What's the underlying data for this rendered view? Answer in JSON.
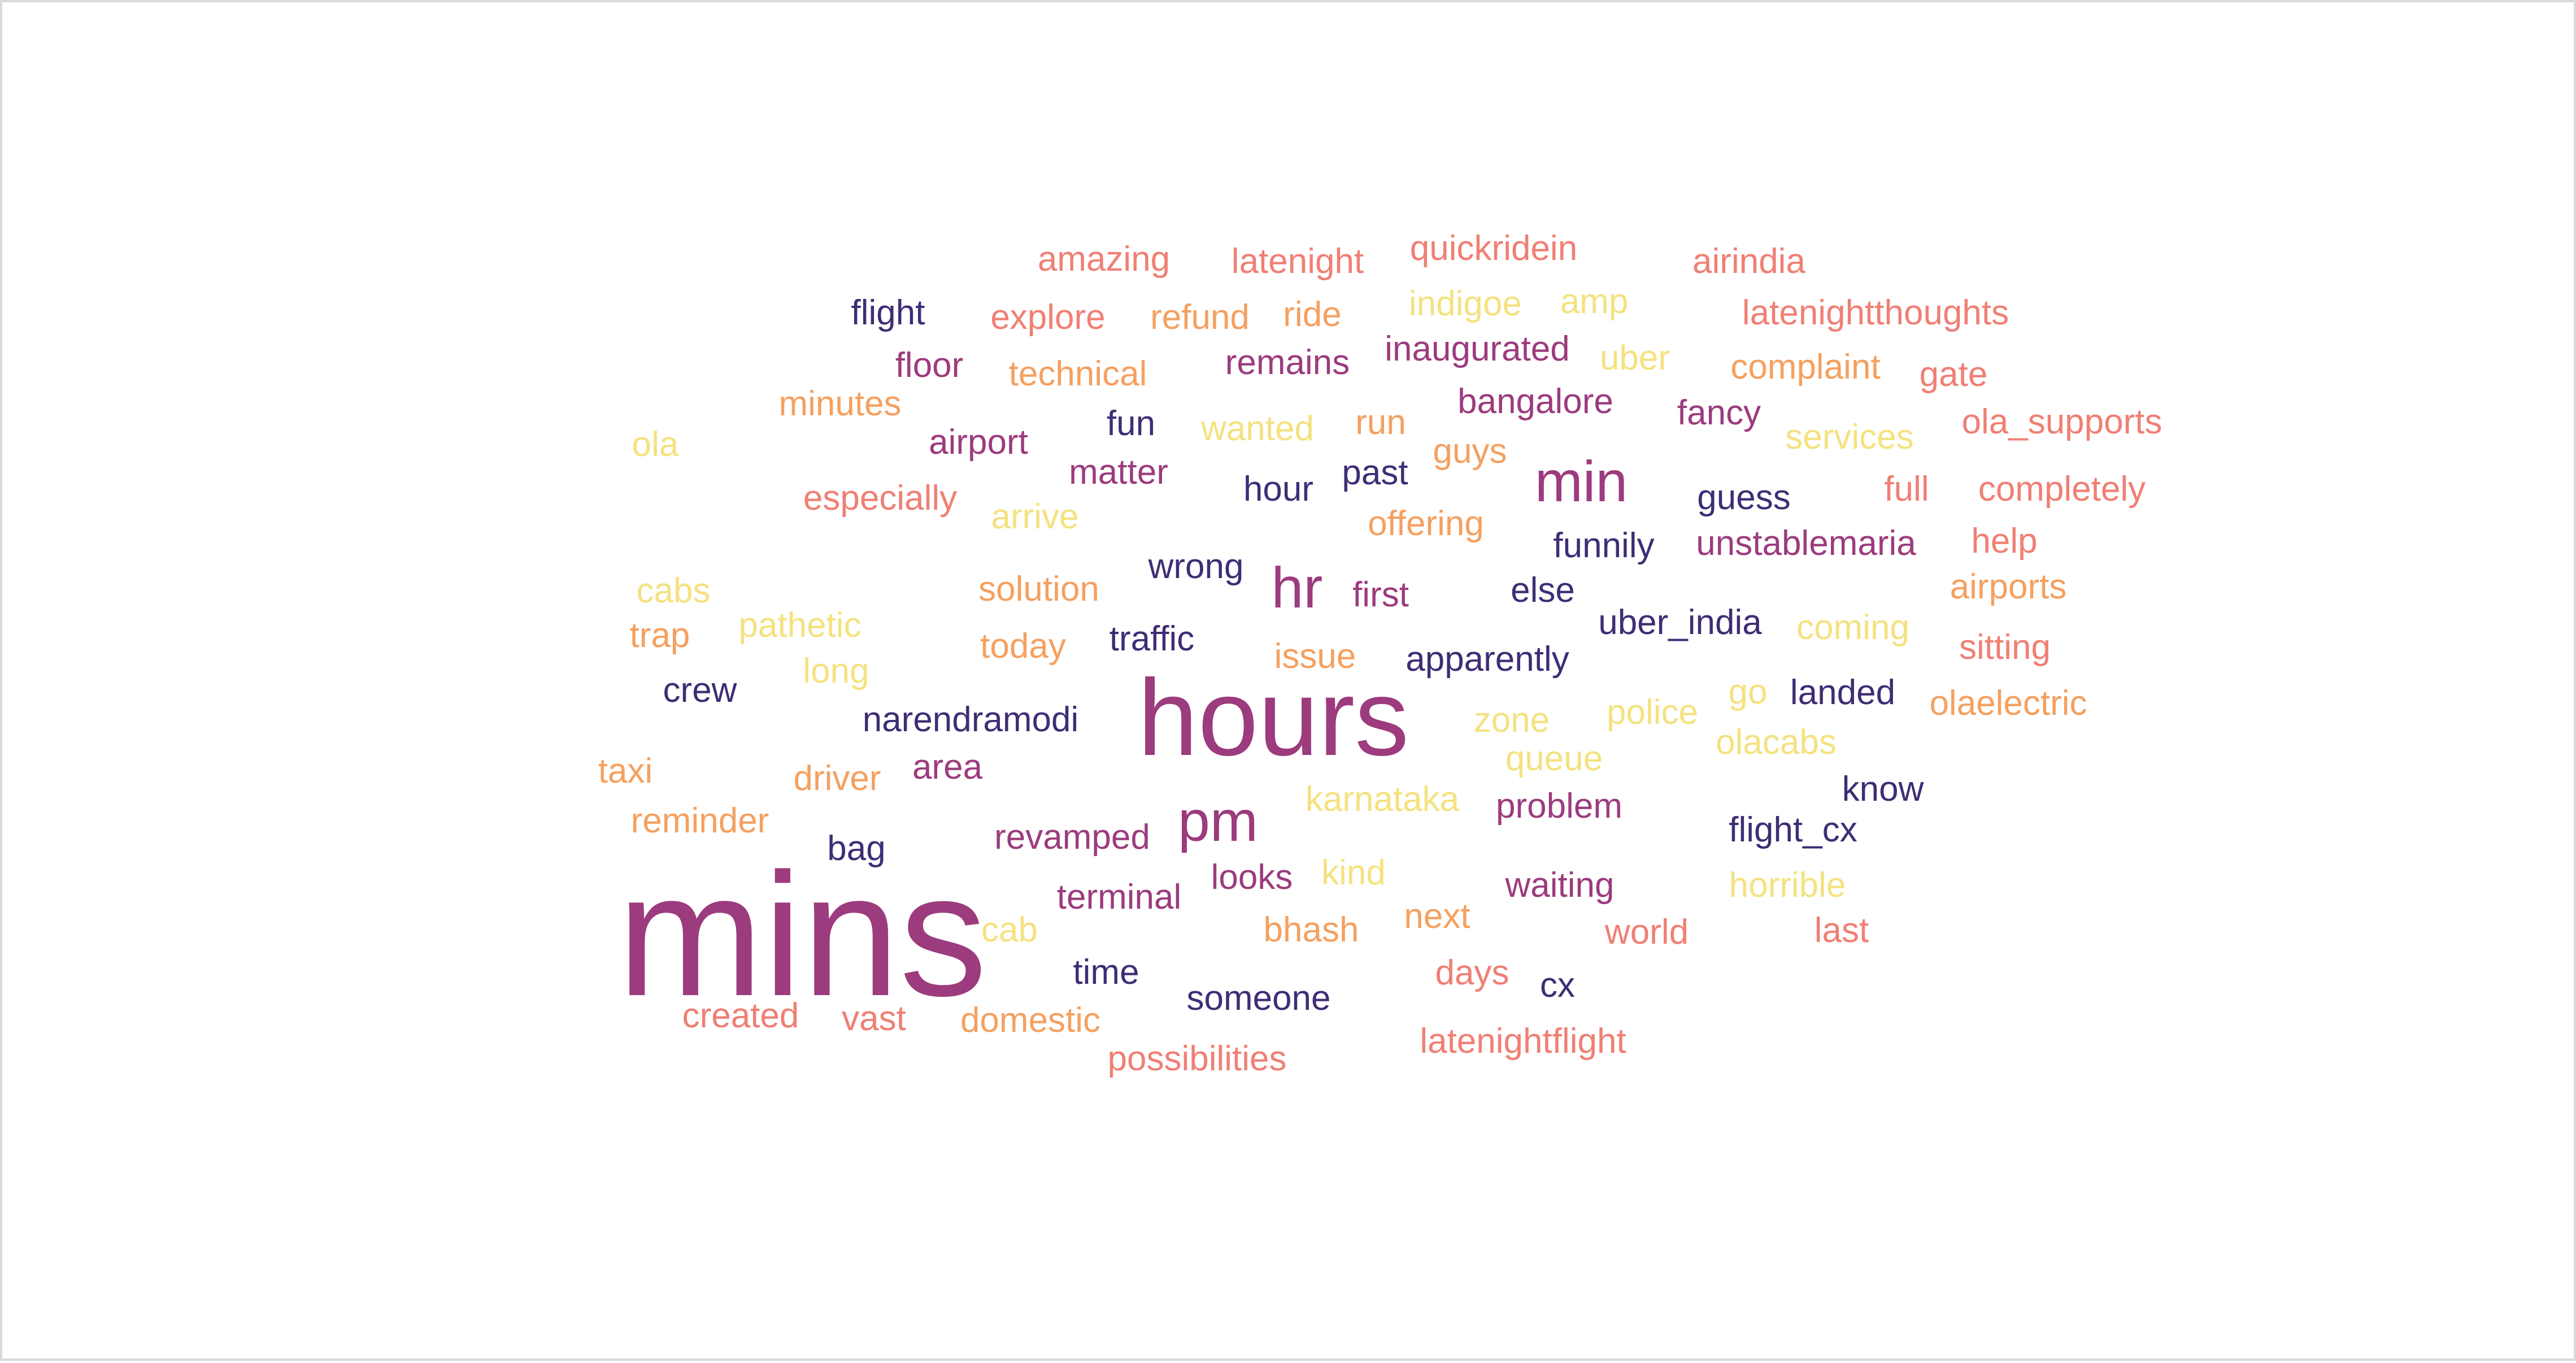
{
  "palette": {
    "plum": "#9C3B7D",
    "navy": "#3E2D75",
    "coral": "#F07F74",
    "orange": "#F5A05F",
    "yellow": "#F4E27F"
  },
  "words": [
    {
      "text": "mins",
      "color": "#9C3B7D"
    },
    {
      "text": "hours",
      "color": "#9C3B7D"
    },
    {
      "text": "min",
      "color": "#9C3B7D"
    },
    {
      "text": "hr",
      "color": "#9C3B7D"
    },
    {
      "text": "pm",
      "color": "#9C3B7D"
    },
    {
      "text": "amazing",
      "color": "#F07F74"
    },
    {
      "text": "latenight",
      "color": "#F07F74"
    },
    {
      "text": "quickridein",
      "color": "#F07F74"
    },
    {
      "text": "airindia",
      "color": "#F07F74"
    },
    {
      "text": "flight",
      "color": "#3E2D75"
    },
    {
      "text": "explore",
      "color": "#F07F74"
    },
    {
      "text": "refund",
      "color": "#F5A05F"
    },
    {
      "text": "ride",
      "color": "#F5A05F"
    },
    {
      "text": "indigoe",
      "color": "#F4E27F"
    },
    {
      "text": "amp",
      "color": "#F4E27F"
    },
    {
      "text": "latenightthoughts",
      "color": "#F07F74"
    },
    {
      "text": "floor",
      "color": "#9C3B7D"
    },
    {
      "text": "technical",
      "color": "#F5A05F"
    },
    {
      "text": "remains",
      "color": "#9C3B7D"
    },
    {
      "text": "inaugurated",
      "color": "#9C3B7D"
    },
    {
      "text": "uber",
      "color": "#F4E27F"
    },
    {
      "text": "complaint",
      "color": "#F5A05F"
    },
    {
      "text": "gate",
      "color": "#F07F74"
    },
    {
      "text": "minutes",
      "color": "#F5A05F"
    },
    {
      "text": "fun",
      "color": "#3E2D75"
    },
    {
      "text": "bangalore",
      "color": "#9C3B7D"
    },
    {
      "text": "fancy",
      "color": "#9C3B7D"
    },
    {
      "text": "ola_supports",
      "color": "#F07F74"
    },
    {
      "text": "ola",
      "color": "#F4E27F"
    },
    {
      "text": "airport",
      "color": "#9C3B7D"
    },
    {
      "text": "wanted",
      "color": "#F4E27F"
    },
    {
      "text": "run",
      "color": "#F5A05F"
    },
    {
      "text": "guys",
      "color": "#F5A05F"
    },
    {
      "text": "services",
      "color": "#F4E27F"
    },
    {
      "text": "matter",
      "color": "#9C3B7D"
    },
    {
      "text": "past",
      "color": "#3E2D75"
    },
    {
      "text": "hour",
      "color": "#3E2D75"
    },
    {
      "text": "full",
      "color": "#F07F74"
    },
    {
      "text": "completely",
      "color": "#F07F74"
    },
    {
      "text": "especially",
      "color": "#F07F74"
    },
    {
      "text": "guess",
      "color": "#3E2D75"
    },
    {
      "text": "arrive",
      "color": "#F4E27F"
    },
    {
      "text": "offering",
      "color": "#F5A05F"
    },
    {
      "text": "funnily",
      "color": "#3E2D75"
    },
    {
      "text": "unstablemaria",
      "color": "#9C3B7D"
    },
    {
      "text": "help",
      "color": "#F07F74"
    },
    {
      "text": "wrong",
      "color": "#3E2D75"
    },
    {
      "text": "cabs",
      "color": "#F4E27F"
    },
    {
      "text": "solution",
      "color": "#F5A05F"
    },
    {
      "text": "first",
      "color": "#9C3B7D"
    },
    {
      "text": "else",
      "color": "#3E2D75"
    },
    {
      "text": "airports",
      "color": "#F5A05F"
    },
    {
      "text": "trap",
      "color": "#F5A05F"
    },
    {
      "text": "pathetic",
      "color": "#F4E27F"
    },
    {
      "text": "traffic",
      "color": "#3E2D75"
    },
    {
      "text": "uber_india",
      "color": "#3E2D75"
    },
    {
      "text": "coming",
      "color": "#F4E27F"
    },
    {
      "text": "today",
      "color": "#F5A05F"
    },
    {
      "text": "sitting",
      "color": "#F07F74"
    },
    {
      "text": "issue",
      "color": "#F5A05F"
    },
    {
      "text": "apparently",
      "color": "#3E2D75"
    },
    {
      "text": "long",
      "color": "#F4E27F"
    },
    {
      "text": "crew",
      "color": "#3E2D75"
    },
    {
      "text": "go",
      "color": "#F4E27F"
    },
    {
      "text": "landed",
      "color": "#3E2D75"
    },
    {
      "text": "olaelectric",
      "color": "#F5A05F"
    },
    {
      "text": "police",
      "color": "#F4E27F"
    },
    {
      "text": "zone",
      "color": "#F4E27F"
    },
    {
      "text": "narendramodi",
      "color": "#3E2D75"
    },
    {
      "text": "olacabs",
      "color": "#F4E27F"
    },
    {
      "text": "queue",
      "color": "#F4E27F"
    },
    {
      "text": "taxi",
      "color": "#F5A05F"
    },
    {
      "text": "area",
      "color": "#9C3B7D"
    },
    {
      "text": "driver",
      "color": "#F5A05F"
    },
    {
      "text": "know",
      "color": "#3E2D75"
    },
    {
      "text": "karnataka",
      "color": "#F4E27F"
    },
    {
      "text": "problem",
      "color": "#9C3B7D"
    },
    {
      "text": "reminder",
      "color": "#F5A05F"
    },
    {
      "text": "flight_cx",
      "color": "#3E2D75"
    },
    {
      "text": "revamped",
      "color": "#9C3B7D"
    },
    {
      "text": "bag",
      "color": "#3E2D75"
    },
    {
      "text": "kind",
      "color": "#F4E27F"
    },
    {
      "text": "looks",
      "color": "#9C3B7D"
    },
    {
      "text": "waiting",
      "color": "#9C3B7D"
    },
    {
      "text": "horrible",
      "color": "#F4E27F"
    },
    {
      "text": "terminal",
      "color": "#9C3B7D"
    },
    {
      "text": "next",
      "color": "#F5A05F"
    },
    {
      "text": "cab",
      "color": "#F4E27F"
    },
    {
      "text": "bhash",
      "color": "#F5A05F"
    },
    {
      "text": "world",
      "color": "#F07F74"
    },
    {
      "text": "last",
      "color": "#F07F74"
    },
    {
      "text": "time",
      "color": "#3E2D75"
    },
    {
      "text": "days",
      "color": "#F07F74"
    },
    {
      "text": "cx",
      "color": "#3E2D75"
    },
    {
      "text": "someone",
      "color": "#3E2D75"
    },
    {
      "text": "created",
      "color": "#F07F74"
    },
    {
      "text": "vast",
      "color": "#F07F74"
    },
    {
      "text": "domestic",
      "color": "#F5A05F"
    },
    {
      "text": "latenightflight",
      "color": "#F07F74"
    },
    {
      "text": "possibilities",
      "color": "#F07F74"
    }
  ]
}
